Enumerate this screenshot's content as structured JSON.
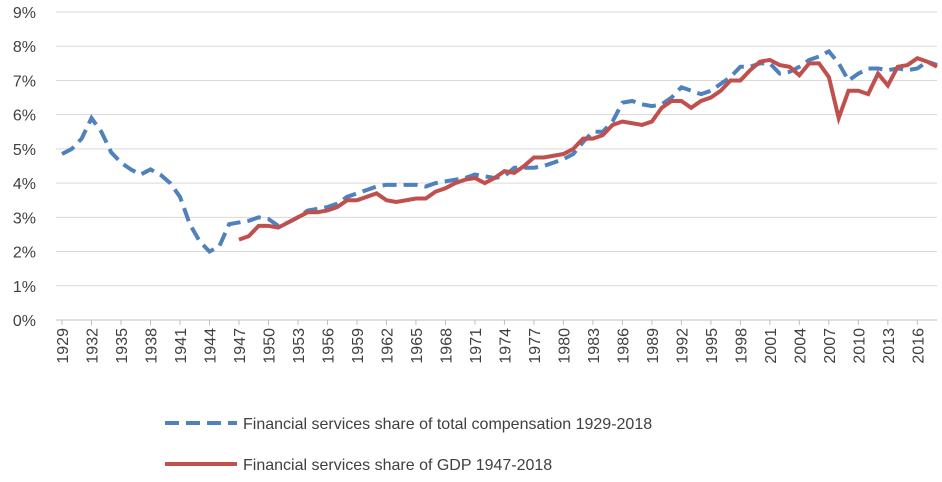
{
  "chart_data": {
    "type": "line",
    "x": [
      1929,
      1930,
      1931,
      1932,
      1933,
      1934,
      1935,
      1936,
      1937,
      1938,
      1939,
      1940,
      1941,
      1942,
      1943,
      1944,
      1945,
      1946,
      1947,
      1948,
      1949,
      1950,
      1951,
      1952,
      1953,
      1954,
      1955,
      1956,
      1957,
      1958,
      1959,
      1960,
      1961,
      1962,
      1963,
      1964,
      1965,
      1966,
      1967,
      1968,
      1969,
      1970,
      1971,
      1972,
      1973,
      1974,
      1975,
      1976,
      1977,
      1978,
      1979,
      1980,
      1981,
      1982,
      1983,
      1984,
      1985,
      1986,
      1987,
      1988,
      1989,
      1990,
      1991,
      1992,
      1993,
      1994,
      1995,
      1996,
      1997,
      1998,
      1999,
      2000,
      2001,
      2002,
      2003,
      2004,
      2005,
      2006,
      2007,
      2008,
      2009,
      2010,
      2011,
      2012,
      2013,
      2014,
      2015,
      2016,
      2017,
      2018
    ],
    "xlim": [
      1929,
      2018
    ],
    "xticks": [
      1929,
      1932,
      1935,
      1938,
      1941,
      1944,
      1947,
      1950,
      1953,
      1956,
      1959,
      1962,
      1965,
      1968,
      1971,
      1974,
      1977,
      1980,
      1983,
      1986,
      1989,
      1992,
      1995,
      1998,
      2001,
      2004,
      2007,
      2010,
      2013,
      2016
    ],
    "ylim": [
      0,
      9
    ],
    "yticks": [
      {
        "value": 0,
        "label": "0%"
      },
      {
        "value": 1,
        "label": "1%"
      },
      {
        "value": 2,
        "label": "2%"
      },
      {
        "value": 3,
        "label": "3%"
      },
      {
        "value": 4,
        "label": "4%"
      },
      {
        "value": 5,
        "label": "5%"
      },
      {
        "value": 6,
        "label": "6%"
      },
      {
        "value": 7,
        "label": "7%"
      },
      {
        "value": 8,
        "label": "8%"
      },
      {
        "value": 9,
        "label": "9%"
      }
    ],
    "grid": true,
    "legend": "bottom",
    "series": [
      {
        "name": "Financial services share of total compensation 1929-2018",
        "color": "#4f81bd",
        "line_style": "dashed",
        "values": [
          4.85,
          5.0,
          5.3,
          5.9,
          5.5,
          4.9,
          4.6,
          4.4,
          4.25,
          4.4,
          4.25,
          4.0,
          3.6,
          2.8,
          2.3,
          2.0,
          2.15,
          2.8,
          2.85,
          2.9,
          3.0,
          2.95,
          2.75,
          2.85,
          3.0,
          3.2,
          3.25,
          3.3,
          3.4,
          3.6,
          3.7,
          3.8,
          3.9,
          3.95,
          3.95,
          3.95,
          3.95,
          3.9,
          4.0,
          4.05,
          4.1,
          4.15,
          4.25,
          4.2,
          4.15,
          4.2,
          4.45,
          4.45,
          4.45,
          4.5,
          4.6,
          4.7,
          4.85,
          5.2,
          5.5,
          5.5,
          5.8,
          6.35,
          6.4,
          6.3,
          6.25,
          6.3,
          6.5,
          6.8,
          6.7,
          6.6,
          6.7,
          6.9,
          7.1,
          7.4,
          7.4,
          7.5,
          7.5,
          7.2,
          7.25,
          7.4,
          7.6,
          7.7,
          7.85,
          7.5,
          7.0,
          7.2,
          7.35,
          7.35,
          7.3,
          7.35,
          7.3,
          7.35,
          7.55,
          7.45
        ]
      },
      {
        "name": "Financial services share of GDP 1947-2018",
        "color": "#c0504d",
        "line_style": "solid",
        "values": [
          null,
          null,
          null,
          null,
          null,
          null,
          null,
          null,
          null,
          null,
          null,
          null,
          null,
          null,
          null,
          null,
          null,
          null,
          2.35,
          2.45,
          2.75,
          2.75,
          2.7,
          2.85,
          3.0,
          3.15,
          3.15,
          3.2,
          3.3,
          3.5,
          3.5,
          3.6,
          3.7,
          3.5,
          3.45,
          3.5,
          3.55,
          3.55,
          3.75,
          3.85,
          4.0,
          4.1,
          4.15,
          4.0,
          4.15,
          4.35,
          4.3,
          4.5,
          4.75,
          4.75,
          4.8,
          4.85,
          5.0,
          5.3,
          5.3,
          5.4,
          5.7,
          5.8,
          5.75,
          5.7,
          5.8,
          6.2,
          6.4,
          6.4,
          6.2,
          6.4,
          6.5,
          6.7,
          7.0,
          7.0,
          7.3,
          7.55,
          7.6,
          7.45,
          7.4,
          7.15,
          7.5,
          7.5,
          7.1,
          5.9,
          6.7,
          6.7,
          6.6,
          7.2,
          6.85,
          7.4,
          7.45,
          7.65,
          7.55,
          7.4
        ]
      }
    ]
  }
}
